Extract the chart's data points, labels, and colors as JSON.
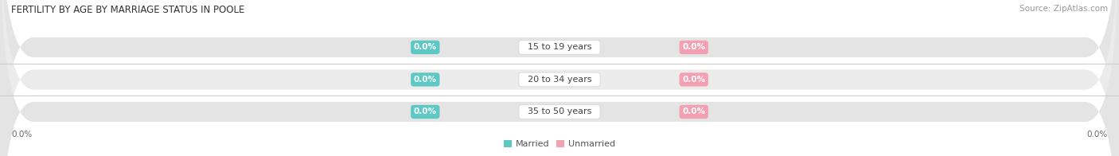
{
  "title": "FERTILITY BY AGE BY MARRIAGE STATUS IN POOLE",
  "source": "Source: ZipAtlas.com",
  "age_groups": [
    "15 to 19 years",
    "20 to 34 years",
    "35 to 50 years"
  ],
  "married_values": [
    0.0,
    0.0,
    0.0
  ],
  "unmarried_values": [
    0.0,
    0.0,
    0.0
  ],
  "married_color": "#5DC8C4",
  "unmarried_color": "#F4A0B4",
  "bar_bg_color": "#E4E4E4",
  "bar_bg_color2": "#EBEBEB",
  "bar_height": 0.62,
  "xlim": [
    -100.0,
    100.0
  ],
  "x_left_label": "0.0%",
  "x_right_label": "0.0%",
  "title_fontsize": 8.5,
  "source_fontsize": 7.5,
  "label_fontsize": 8.0,
  "badge_fontsize": 7.5,
  "axis_label_fontsize": 7.5,
  "legend_fontsize": 8.0,
  "background_color": "#FFFFFF",
  "panel_bg_color": "#F0F0F0",
  "separator_color": "#CCCCCC"
}
